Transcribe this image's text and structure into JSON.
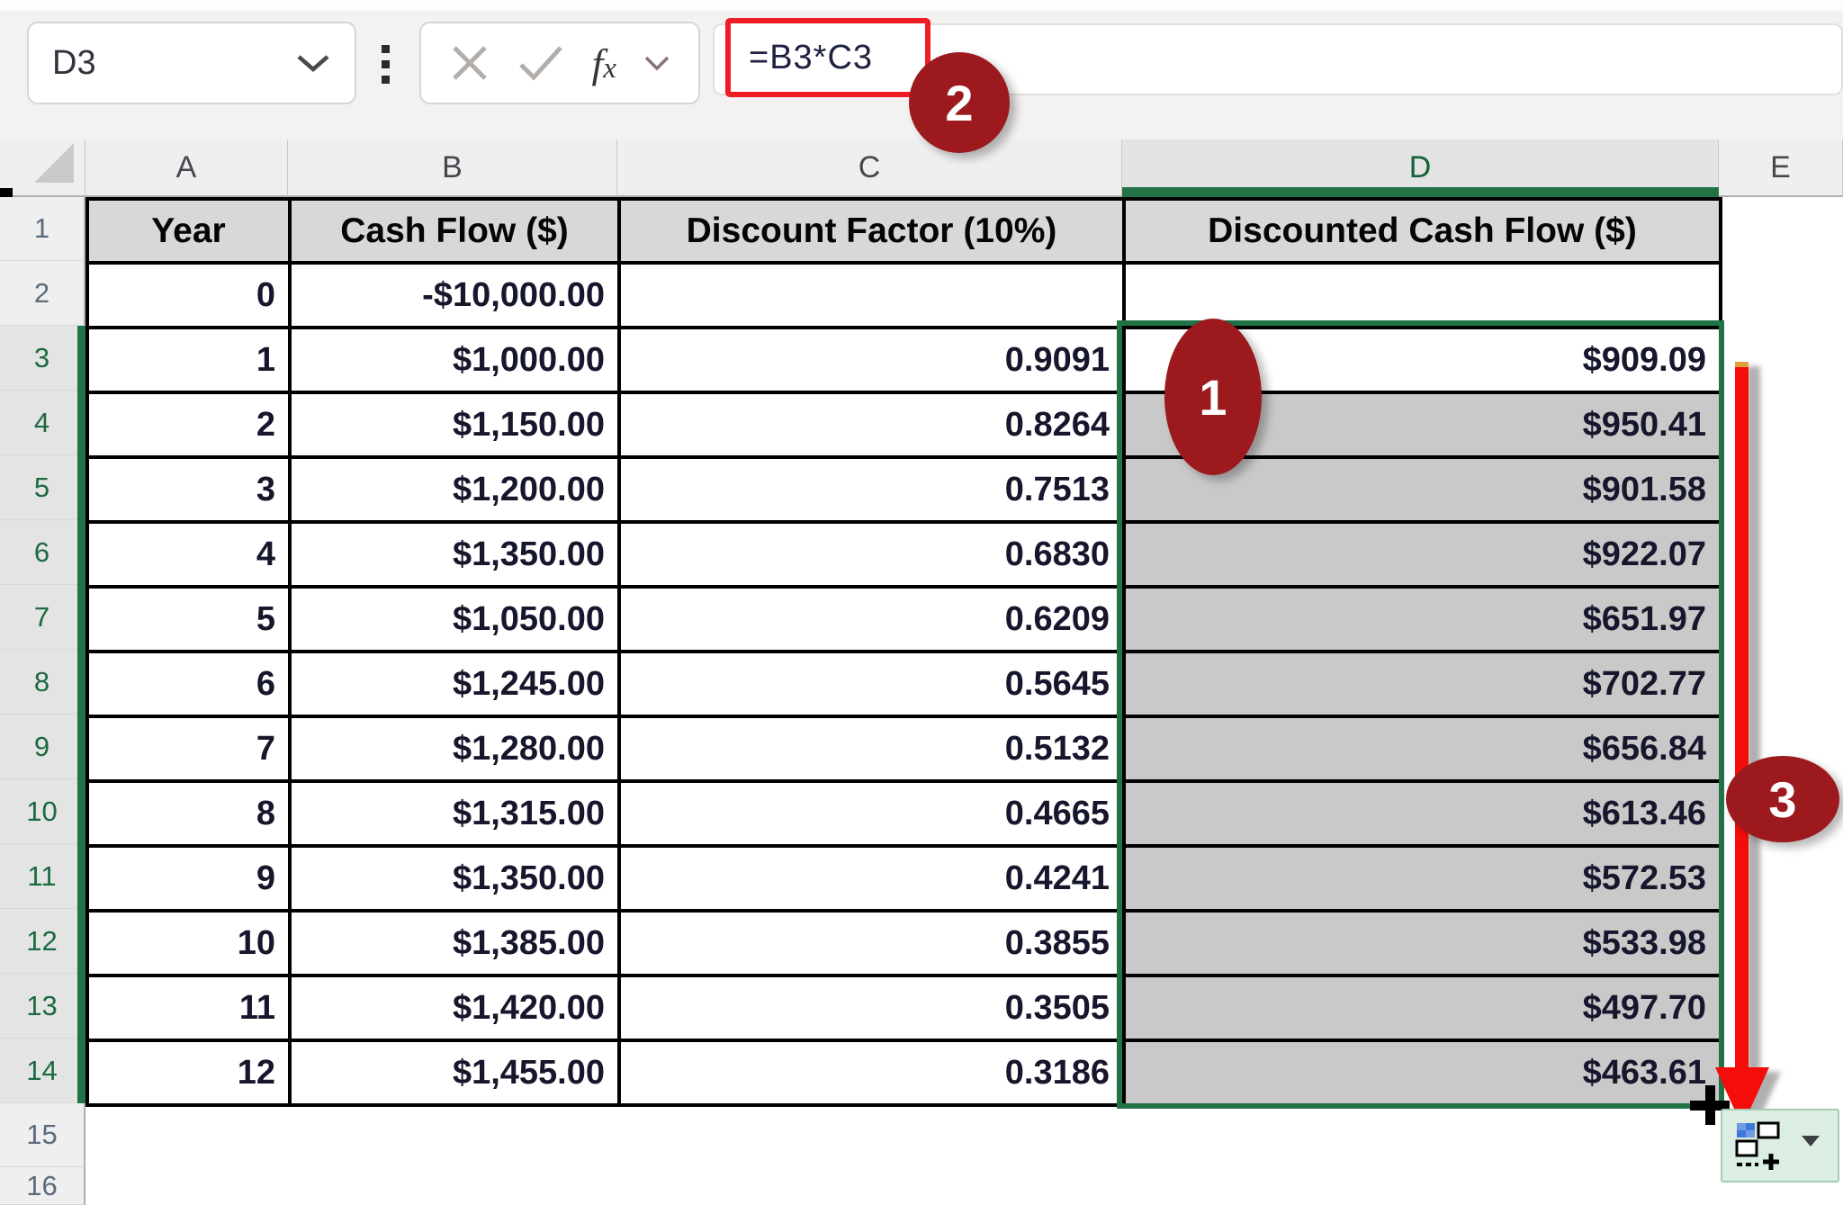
{
  "chrome": {
    "name_box_value": "D3",
    "formula_bar_value": "=B3*C3",
    "insert_function_label_f": "f",
    "insert_function_label_x": "x"
  },
  "sheet": {
    "column_letters": [
      "A",
      "B",
      "C",
      "D",
      "E"
    ],
    "row_numbers": [
      "1",
      "2",
      "3",
      "4",
      "5",
      "6",
      "7",
      "8",
      "9",
      "10",
      "11",
      "12",
      "13",
      "14",
      "15",
      "16"
    ],
    "selected_column": "D",
    "selected_rows_start": 3,
    "selected_rows_end": 14,
    "active_cell": "D3"
  },
  "table": {
    "headers": [
      "Year",
      "Cash Flow ($)",
      "Discount Factor (10%)",
      "Discounted Cash Flow ($)"
    ],
    "rows": [
      [
        "0",
        "-$10,000.00",
        "",
        ""
      ],
      [
        "1",
        "$1,000.00",
        "0.9091",
        "$909.09"
      ],
      [
        "2",
        "$1,150.00",
        "0.8264",
        "$950.41"
      ],
      [
        "3",
        "$1,200.00",
        "0.7513",
        "$901.58"
      ],
      [
        "4",
        "$1,350.00",
        "0.6830",
        "$922.07"
      ],
      [
        "5",
        "$1,050.00",
        "0.6209",
        "$651.97"
      ],
      [
        "6",
        "$1,245.00",
        "0.5645",
        "$702.77"
      ],
      [
        "7",
        "$1,280.00",
        "0.5132",
        "$656.84"
      ],
      [
        "8",
        "$1,315.00",
        "0.4665",
        "$613.46"
      ],
      [
        "9",
        "$1,350.00",
        "0.4241",
        "$572.53"
      ],
      [
        "10",
        "$1,385.00",
        "0.3855",
        "$533.98"
      ],
      [
        "11",
        "$1,420.00",
        "0.3505",
        "$497.70"
      ],
      [
        "12",
        "$1,455.00",
        "0.3186",
        "$463.61"
      ]
    ]
  },
  "annotations": {
    "badges": [
      {
        "label": "1"
      },
      {
        "label": "2"
      },
      {
        "label": "3"
      }
    ]
  },
  "colors": {
    "selection_green": "#217346",
    "selection_fill": "#C9C9C9",
    "badge_red": "#9C1A1D",
    "arrow_red": "#F50D0B",
    "highlight_box_red": "#EE1D25",
    "table_header_fill": "#D8D8D8"
  }
}
